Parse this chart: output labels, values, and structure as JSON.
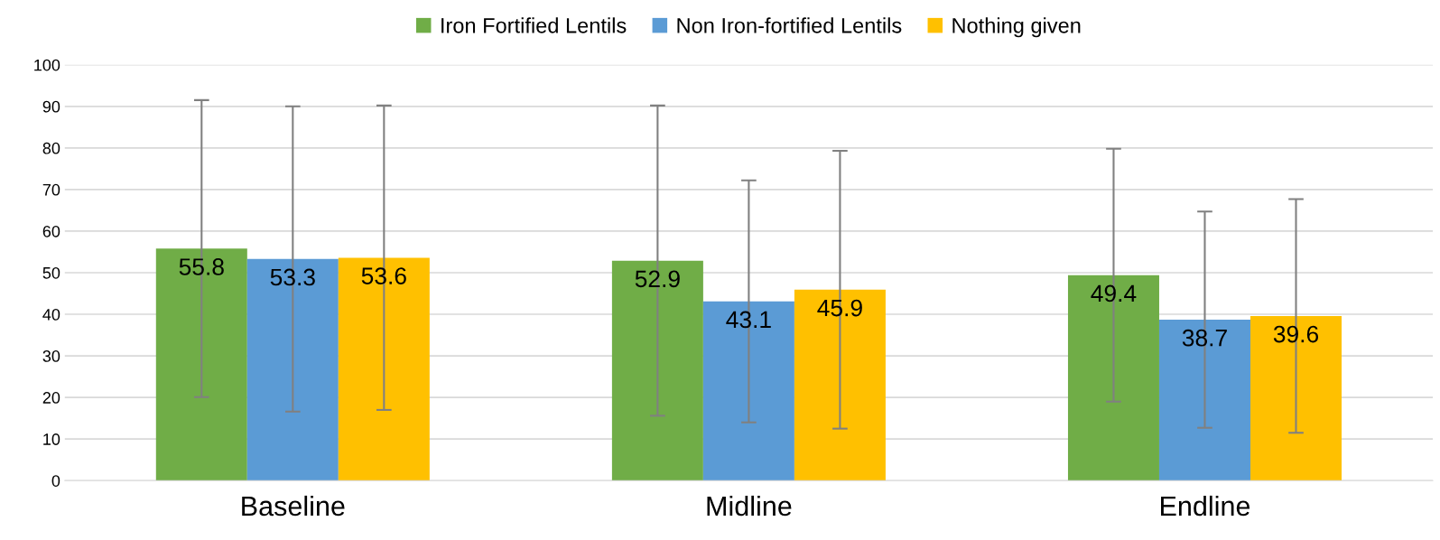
{
  "chart_data": {
    "type": "bar",
    "categories": [
      "Baseline",
      "Midline",
      "Endline"
    ],
    "series": [
      {
        "name": "Iron Fortified Lentils",
        "color": "#70ad47",
        "values": [
          55.8,
          52.9,
          49.4
        ],
        "errors": [
          35.7,
          37.3,
          30.4
        ]
      },
      {
        "name": "Non Iron-fortified Lentils",
        "color": "#5b9bd5",
        "values": [
          53.3,
          43.1,
          38.7
        ],
        "errors": [
          36.7,
          29.1,
          26.0
        ]
      },
      {
        "name": "Nothing given",
        "color": "#ffc000",
        "values": [
          53.6,
          45.9,
          39.6
        ],
        "errors": [
          36.6,
          33.4,
          28.1
        ]
      }
    ],
    "ylim": [
      0,
      100
    ],
    "yticks": [
      0,
      10,
      20,
      30,
      40,
      50,
      60,
      70,
      80,
      90,
      100
    ],
    "grid": "y",
    "legend": "top",
    "data_labels": true
  }
}
